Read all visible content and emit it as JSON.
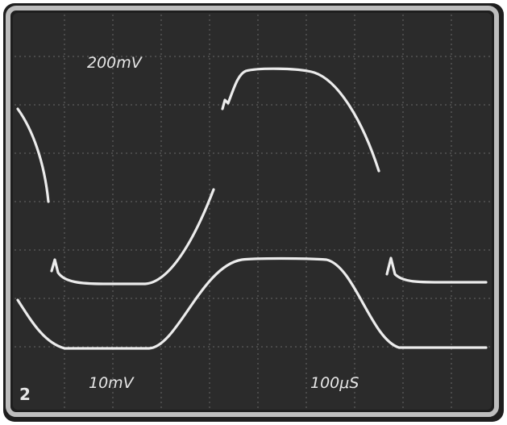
{
  "labels": {
    "top_scale": "200mV",
    "bottom_scale": "10mV",
    "time_scale": "100μS",
    "channel": "2"
  }
}
